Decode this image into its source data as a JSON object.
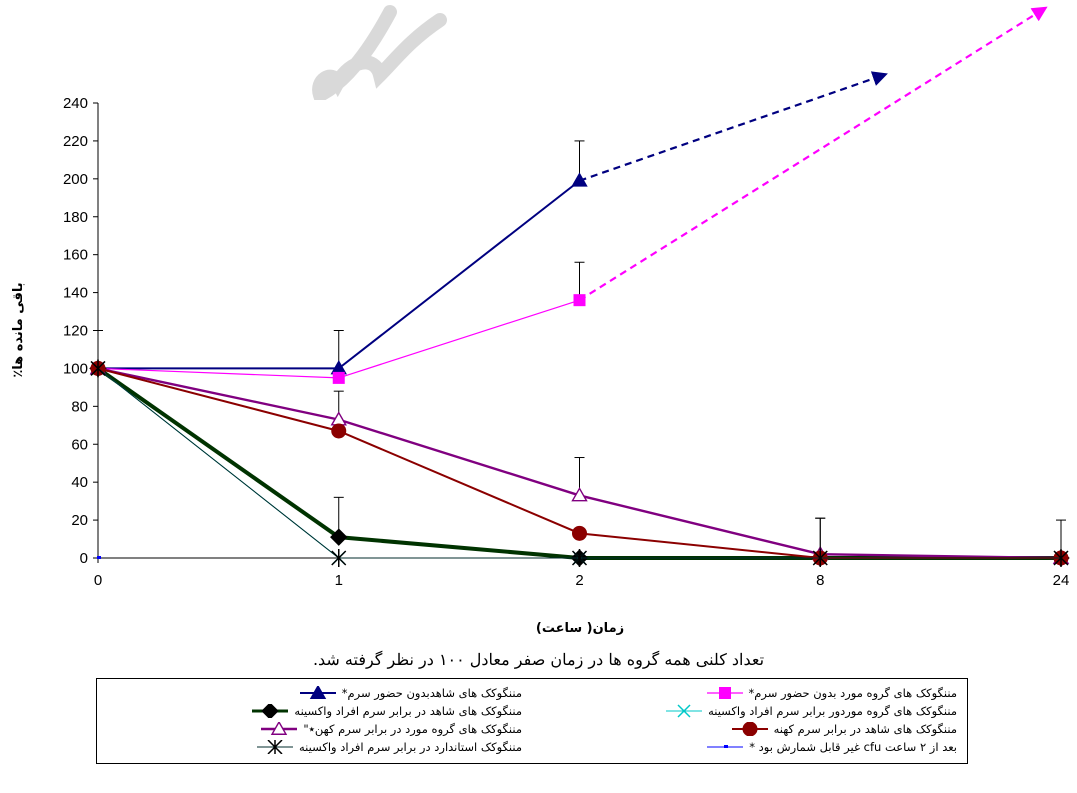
{
  "chart_data": {
    "type": "line",
    "categories": [
      "0",
      "1",
      "2",
      "8",
      "24"
    ],
    "ylim": [
      0,
      240
    ],
    "yticks": [
      0,
      20,
      40,
      60,
      80,
      100,
      120,
      140,
      160,
      180,
      200,
      220,
      240
    ],
    "xlabel": "زمان( ساعت)",
    "ylabel": "باقی مانده ها٪",
    "grid": false,
    "legend_position": "bottom",
    "series": [
      {
        "name": "مننگوکک های شاهدبدون حضور سرم*",
        "values": [
          100,
          100,
          199,
          null,
          null
        ],
        "color": "#000080",
        "marker": "triangle-filled",
        "width": 2,
        "error": [
          20,
          20,
          21,
          null,
          null
        ],
        "trend_to": [
          255
        ]
      },
      {
        "name": "مننگوکک های گروه مورد بدون حضور سرم*",
        "values": [
          100,
          95,
          136,
          null,
          null
        ],
        "color": "#ff00ff",
        "marker": "square",
        "width": 1.2,
        "error": [
          null,
          null,
          20,
          null,
          null
        ],
        "trend_to": [
          290
        ]
      },
      {
        "name": "مننگوکک های شاهد در برابر سرم افراد واکسینه",
        "values": [
          100,
          11,
          0,
          0,
          0
        ],
        "color": "#003300",
        "marker": "diamond",
        "width": 4,
        "error": [
          null,
          21,
          null,
          null,
          null
        ]
      },
      {
        "name": "مننگوکک های گروه موردور برابر سرم افراد واکسینه",
        "values": [
          100,
          0,
          0,
          0,
          0
        ],
        "color": "#00c8c8",
        "marker": "x",
        "width": 1
      },
      {
        "name": "مننگوکک های گروه مورد در برابر سرم کهن٭\"",
        "values": [
          100,
          73,
          33,
          2,
          0
        ],
        "color": "#800080",
        "marker": "triangle-open",
        "width": 2.4,
        "error": [
          null,
          15,
          20,
          19,
          20
        ]
      },
      {
        "name": "مننگوکک های شاهد در برابر سرم کهنه",
        "values": [
          100,
          67,
          13,
          0,
          0
        ],
        "color": "#8b0000",
        "marker": "circle",
        "width": 2,
        "error": [
          null,
          null,
          null,
          21,
          null
        ]
      },
      {
        "name": "مننگوکک استاندارد در برابر سرم افراد واکسینه",
        "values": [
          100,
          0,
          0,
          0,
          0
        ],
        "color": "#002b2b",
        "marker": "star",
        "width": 1
      },
      {
        "name": "بعد از ۲ ساعت cfu غیر قابل شمارش بود *",
        "values": [
          0,
          null,
          null,
          null,
          null
        ],
        "color": "#0000ff",
        "marker": "dash",
        "width": 1
      }
    ],
    "note": "تعداد کلنی همه گروه ها در زمان صفر معادل ۱۰۰ در نظر گرفته شد."
  }
}
